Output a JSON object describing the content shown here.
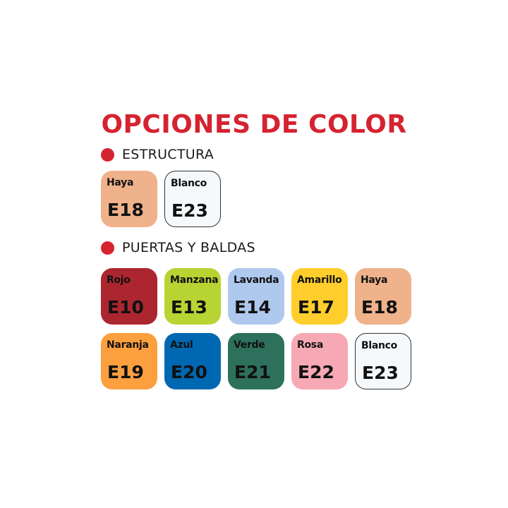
{
  "title": "OPCIONES DE COLOR",
  "accent_color": "#d52330",
  "sections": [
    {
      "label": "ESTRUCTURA",
      "swatches": [
        {
          "name": "Haya",
          "code": "E18",
          "color": "#efb28a"
        },
        {
          "name": "Blanco",
          "code": "E23",
          "color": "#f5f9fb"
        }
      ]
    },
    {
      "label": "PUERTAS Y BALDAS",
      "swatches": [
        {
          "name": "Rojo",
          "code": "E10",
          "color": "#ac2630"
        },
        {
          "name": "Manzana",
          "code": "E13",
          "color": "#b8d433"
        },
        {
          "name": "Lavanda",
          "code": "E14",
          "color": "#aec8ee"
        },
        {
          "name": "Amarillo",
          "code": "E17",
          "color": "#ffce2c"
        },
        {
          "name": "Haya",
          "code": "E18",
          "color": "#efb28a"
        },
        {
          "name": "Naranja",
          "code": "E19",
          "color": "#fc9f3e"
        },
        {
          "name": "Azul",
          "code": "E20",
          "color": "#0068b2"
        },
        {
          "name": "Verde",
          "code": "E21",
          "color": "#2d705c"
        },
        {
          "name": "Rosa",
          "code": "E22",
          "color": "#f7a8b5"
        },
        {
          "name": "Blanco",
          "code": "E23",
          "color": "#f5f9fb"
        }
      ]
    }
  ]
}
